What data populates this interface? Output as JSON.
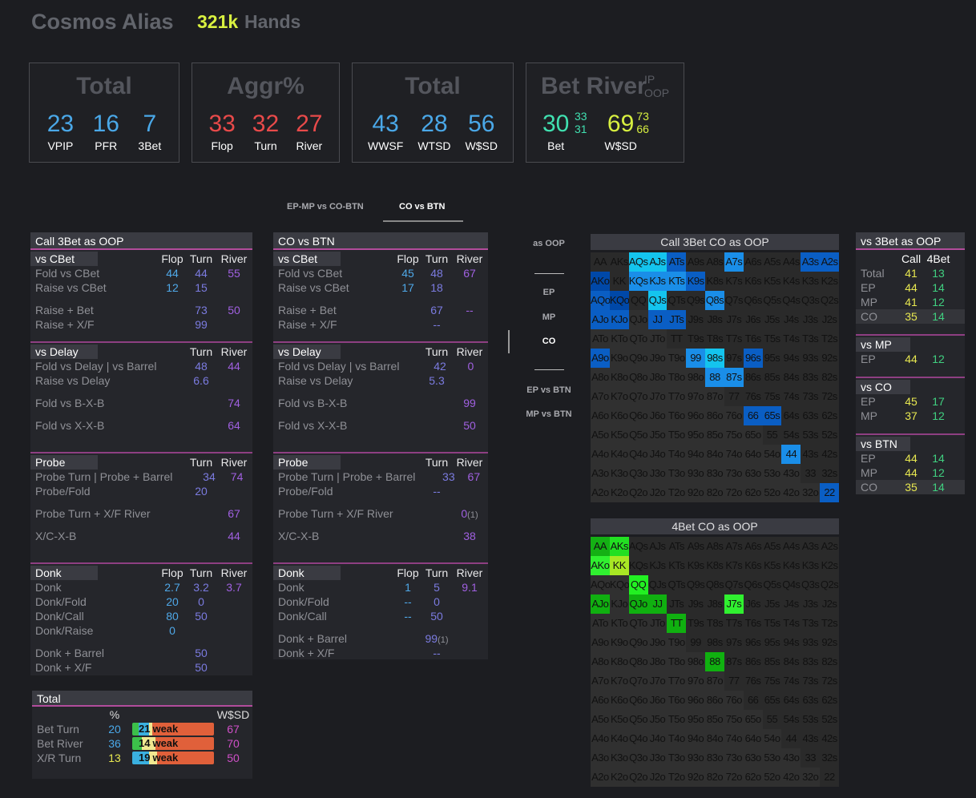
{
  "header": {
    "title": "Cosmos Alias",
    "hands_count": "321k",
    "hands_label": "Hands"
  },
  "colors": {
    "blue": "#4aa8e8",
    "red": "#e84a4a",
    "teal": "#40e0b0",
    "yellow": "#d8f040",
    "flop": "#4fa8e8",
    "turn": "#7b7be0",
    "river": "#a060e0",
    "accent_line": "#b24c9c"
  },
  "boxes": [
    {
      "title": "Total",
      "stats": [
        {
          "value": "23",
          "label": "VPIP",
          "color": "#4aa8e8"
        },
        {
          "value": "16",
          "label": "PFR",
          "color": "#4aa8e8"
        },
        {
          "value": "7",
          "label": "3Bet",
          "color": "#4aa8e8"
        }
      ]
    },
    {
      "title": "Aggr%",
      "stats": [
        {
          "value": "33",
          "label": "Flop",
          "color": "#e84a4a"
        },
        {
          "value": "32",
          "label": "Turn",
          "color": "#e84a4a"
        },
        {
          "value": "27",
          "label": "River",
          "color": "#e84a4a"
        }
      ]
    },
    {
      "title": "Total",
      "stats": [
        {
          "value": "43",
          "label": "WWSF",
          "color": "#4aa8e8"
        },
        {
          "value": "28",
          "label": "WTSD",
          "color": "#4aa8e8"
        },
        {
          "value": "56",
          "label": "W$SD",
          "color": "#4aa8e8"
        }
      ]
    },
    {
      "title": "Bet River",
      "sub_labels": [
        "IP",
        "OOP"
      ],
      "stats": [
        {
          "value": "30",
          "label": "Bet",
          "color": "#40e0b0",
          "subs": [
            "33",
            "31"
          ]
        },
        {
          "value": "69",
          "label": "W$SD",
          "color": "#d8f040",
          "subs": [
            "73",
            "66"
          ]
        }
      ]
    }
  ],
  "tabs": [
    {
      "label": "EP-MP vs CO-BTN",
      "active": false
    },
    {
      "label": "CO vs BTN",
      "active": true
    }
  ],
  "panels": [
    {
      "title": "Call 3Bet as OOP",
      "sections": [
        {
          "title": "vs CBet",
          "cols": [
            "Flop",
            "Turn",
            "River"
          ],
          "groups": [
            [
              {
                "label": "Fold vs CBet",
                "flop": "44",
                "turn": "44",
                "river": "55"
              },
              {
                "label": "Raise vs CBet",
                "flop": "12",
                "turn": "15"
              }
            ],
            [
              {
                "label": "Raise + Bet",
                "turn": "73",
                "river": "50"
              },
              {
                "label": "Raise + X/F",
                "turn": "99"
              }
            ]
          ]
        },
        {
          "title": "vs Delay",
          "cols": [
            "",
            "Turn",
            "River"
          ],
          "groups": [
            [
              {
                "label": "Fold vs Delay | vs Barrel",
                "turn": "48",
                "river": "44"
              },
              {
                "label": "Raise vs Delay",
                "turn": "6.6"
              }
            ],
            [
              {
                "label": "Fold vs B-X-B",
                "river": "74"
              }
            ],
            [
              {
                "label": "Fold vs X-X-B",
                "river": "64"
              }
            ]
          ]
        },
        {
          "title": "Probe",
          "cols": [
            "",
            "Turn",
            "River"
          ],
          "groups": [
            [
              {
                "label": "Probe Turn | Probe + Barrel",
                "turn": "34",
                "river": "74"
              },
              {
                "label": "Probe/Fold",
                "turn": "20"
              }
            ],
            [
              {
                "label": "Probe Turn + X/F River",
                "river": "67"
              }
            ],
            [
              {
                "label": "X/C-X-B",
                "river": "44"
              }
            ]
          ]
        },
        {
          "title": "Donk",
          "cols": [
            "Flop",
            "Turn",
            "River"
          ],
          "groups": [
            [
              {
                "label": "Donk",
                "flop": "2.7",
                "turn": "3.2",
                "river": "3.7"
              },
              {
                "label": "Donk/Fold",
                "flop": "20",
                "turn": "0"
              },
              {
                "label": "Donk/Call",
                "flop": "80",
                "turn": "50"
              },
              {
                "label": "Donk/Raise",
                "flop": "0"
              }
            ],
            [
              {
                "label": "Donk + Barrel",
                "turn": "50"
              },
              {
                "label": "Donk + X/F",
                "turn": "50"
              }
            ]
          ]
        }
      ]
    },
    {
      "title": "CO vs BTN",
      "sections": [
        {
          "title": "vs CBet",
          "cols": [
            "Flop",
            "Turn",
            "River"
          ],
          "groups": [
            [
              {
                "label": "Fold vs CBet",
                "flop": "45",
                "turn": "48",
                "river": "67"
              },
              {
                "label": "Raise vs CBet",
                "flop": "17",
                "turn": "18"
              }
            ],
            [
              {
                "label": "Raise + Bet",
                "turn": "67",
                "river": "--"
              },
              {
                "label": "Raise + X/F",
                "turn": "--"
              }
            ]
          ]
        },
        {
          "title": "vs Delay",
          "cols": [
            "",
            "Turn",
            "River"
          ],
          "groups": [
            [
              {
                "label": "Fold vs Delay | vs Barrel",
                "turn": "42",
                "river": "0"
              },
              {
                "label": "Raise vs Delay",
                "turn": "5.3"
              }
            ],
            [
              {
                "label": "Fold vs B-X-B",
                "river": "99"
              }
            ],
            [
              {
                "label": "Fold vs X-X-B",
                "river": "50"
              }
            ]
          ]
        },
        {
          "title": "Probe",
          "cols": [
            "",
            "Turn",
            "River"
          ],
          "groups": [
            [
              {
                "label": "Probe Turn | Probe + Barrel",
                "turn": "33",
                "river": "67"
              },
              {
                "label": "Probe/Fold",
                "turn": "--"
              }
            ],
            [
              {
                "label": "Probe Turn + X/F River",
                "river": "0",
                "river_note": "(1)"
              }
            ],
            [
              {
                "label": "X/C-X-B",
                "river": "38"
              }
            ]
          ]
        },
        {
          "title": "Donk",
          "cols": [
            "Flop",
            "Turn",
            "River"
          ],
          "groups": [
            [
              {
                "label": "Donk",
                "flop": "1",
                "turn": "5",
                "river": "9.1"
              },
              {
                "label": "Donk/Fold",
                "flop": "--",
                "turn": "0"
              },
              {
                "label": "Donk/Call",
                "flop": "--",
                "turn": "50"
              }
            ],
            [
              {
                "label": "Donk + Barrel",
                "turn": "99",
                "turn_note": "(1)"
              },
              {
                "label": "Donk + X/F",
                "turn": "--"
              }
            ]
          ]
        }
      ]
    }
  ],
  "side_nav": {
    "header": "as OOP",
    "positions": [
      {
        "label": "EP",
        "active": false
      },
      {
        "label": "MP",
        "active": false
      },
      {
        "label": "CO",
        "active": true
      }
    ],
    "matchups": [
      "EP vs BTN",
      "MP vs BTN"
    ]
  },
  "ranks": [
    "A",
    "K",
    "Q",
    "J",
    "T",
    "9",
    "8",
    "7",
    "6",
    "5",
    "4",
    "3",
    "2"
  ],
  "range_grids": [
    {
      "title": "Call 3Bet CO as OOP",
      "highlights": {
        "AQs": "#14c4ee",
        "AJs": "#14c4ee",
        "ATs": "#0a5ec4",
        "A7s": "#1a8ee8",
        "A3s": "#0a5ec4",
        "A2s": "#0a5ec4",
        "AKo": "#0048a8",
        "KQs": "#1a8ee8",
        "KJs": "#1a8ee8",
        "KTs": "#1a8ee8",
        "K9s": "#0a5ec4",
        "AQo": "#0a5ec4",
        "KQo": "#0048a8",
        "QJs": "#14c4ee",
        "Q8s": "#1a8ee8",
        "AJo": "#0a5ec4",
        "KJo": "#0a5ec4",
        "JJ": "#0a5ec4",
        "JTs": "#0a5ec4",
        "A9o": "#0a5ec4",
        "99": "#1a8ee8",
        "98s": "#14c4ee",
        "96s": "#0a5ec4",
        "88": "#1a8ee8",
        "87s": "#1a8ee8",
        "66": "#0a5ec4",
        "65s": "#0a5ec4",
        "44": "#1a8ee8",
        "22": "#0a5ec4"
      }
    },
    {
      "title": "4Bet CO as OOP",
      "highlights": {
        "AA": "#14b014",
        "AKs": "#22e022",
        "AKo": "#30f030",
        "KK": "#a8e824",
        "QQ": "#22f022",
        "AJo": "#10b010",
        "QJo": "#10b010",
        "JJ": "#10b010",
        "J7s": "#30f030",
        "TT": "#10b010",
        "88": "#10b010"
      }
    }
  ],
  "vs3bet": {
    "title": "vs 3Bet as OOP",
    "cols": [
      "Call",
      "4Bet"
    ],
    "rows": [
      {
        "label": "Total",
        "call": "41",
        "fourbet": "13"
      },
      {
        "label": "EP",
        "call": "44",
        "fourbet": "14"
      },
      {
        "label": "MP",
        "call": "41",
        "fourbet": "12"
      },
      {
        "label": "CO",
        "call": "35",
        "fourbet": "14",
        "highlight": true
      }
    ],
    "groups": [
      {
        "title": "vs MP",
        "rows": [
          {
            "label": "EP",
            "call": "44",
            "fourbet": "12"
          }
        ]
      },
      {
        "title": "vs CO",
        "rows": [
          {
            "label": "EP",
            "call": "45",
            "fourbet": "17"
          },
          {
            "label": "MP",
            "call": "37",
            "fourbet": "12"
          }
        ]
      },
      {
        "title": "vs BTN",
        "rows": [
          {
            "label": "EP",
            "call": "44",
            "fourbet": "14"
          },
          {
            "label": "MP",
            "call": "44",
            "fourbet": "12"
          },
          {
            "label": "CO",
            "call": "35",
            "fourbet": "14",
            "highlight": true
          }
        ]
      }
    ]
  },
  "total_panel": {
    "title": "Total",
    "col_pct": "%",
    "col_wsd": "W$SD",
    "rows": [
      {
        "label": "Bet Turn",
        "pct": "20",
        "pct_color": "#4aa8e8",
        "bar_value": "21",
        "bar_label": "weak",
        "wsd": "67",
        "segments": [
          {
            "color": "#3cc04a",
            "pct": 8
          },
          {
            "color": "#3ab0e0",
            "pct": 13
          },
          {
            "color": "#f0e890",
            "pct": 4
          },
          {
            "color": "#e0603a",
            "pct": 75
          }
        ]
      },
      {
        "label": "Bet River",
        "pct": "36",
        "pct_color": "#4aa8e8",
        "bar_value": "14",
        "bar_label": "weak",
        "wsd": "70",
        "segments": [
          {
            "color": "#3cc04a",
            "pct": 12
          },
          {
            "color": "#f0e890",
            "pct": 16
          },
          {
            "color": "#e0603a",
            "pct": 72
          }
        ]
      },
      {
        "label": "X/R Turn",
        "pct": "13",
        "pct_color": "#e8e850",
        "bar_value": "19",
        "bar_label": "weak",
        "wsd": "50",
        "segments": [
          {
            "color": "#3ab0e0",
            "pct": 21
          },
          {
            "color": "#f0e890",
            "pct": 9
          },
          {
            "color": "#e0603a",
            "pct": 70
          }
        ]
      }
    ]
  }
}
